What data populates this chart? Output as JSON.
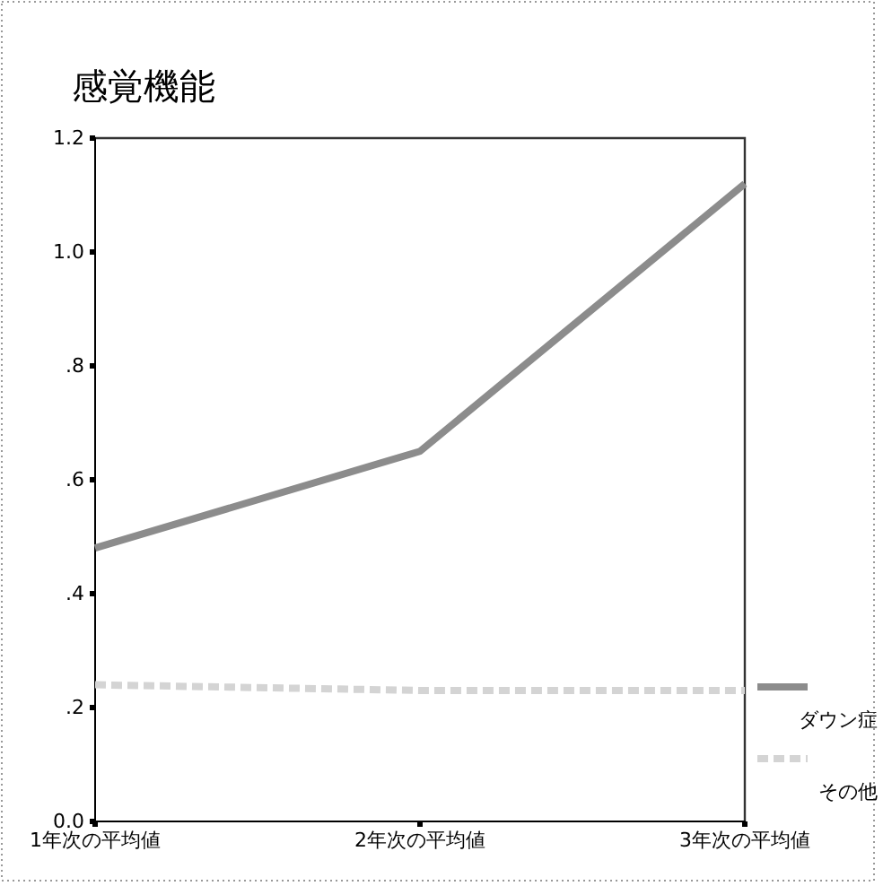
{
  "chart_data": {
    "type": "line",
    "title": "感覚機能",
    "categories": [
      "1年次の平均値",
      "2年次の平均値",
      "3年次の平均値"
    ],
    "series": [
      {
        "name": "ダウン症",
        "color": "#8c8c8c",
        "values": [
          0.48,
          0.65,
          1.12
        ],
        "line_style": "solid"
      },
      {
        "name": "その他",
        "color": "#d4d4d4",
        "values": [
          0.24,
          0.23,
          0.23
        ],
        "line_style": "dashed"
      }
    ],
    "ylim": [
      0,
      1.2
    ],
    "yticks": [
      {
        "value": 0,
        "label": "0.0"
      },
      {
        "value": 0.2,
        "label": ".2"
      },
      {
        "value": 0.4,
        "label": ".4"
      },
      {
        "value": 0.6,
        "label": ".6"
      },
      {
        "value": 0.8,
        "label": ".8"
      },
      {
        "value": 1.0,
        "label": "1.0"
      },
      {
        "value": 1.2,
        "label": "1.2"
      }
    ],
    "grid": false,
    "legend": "right",
    "marker": "none"
  }
}
